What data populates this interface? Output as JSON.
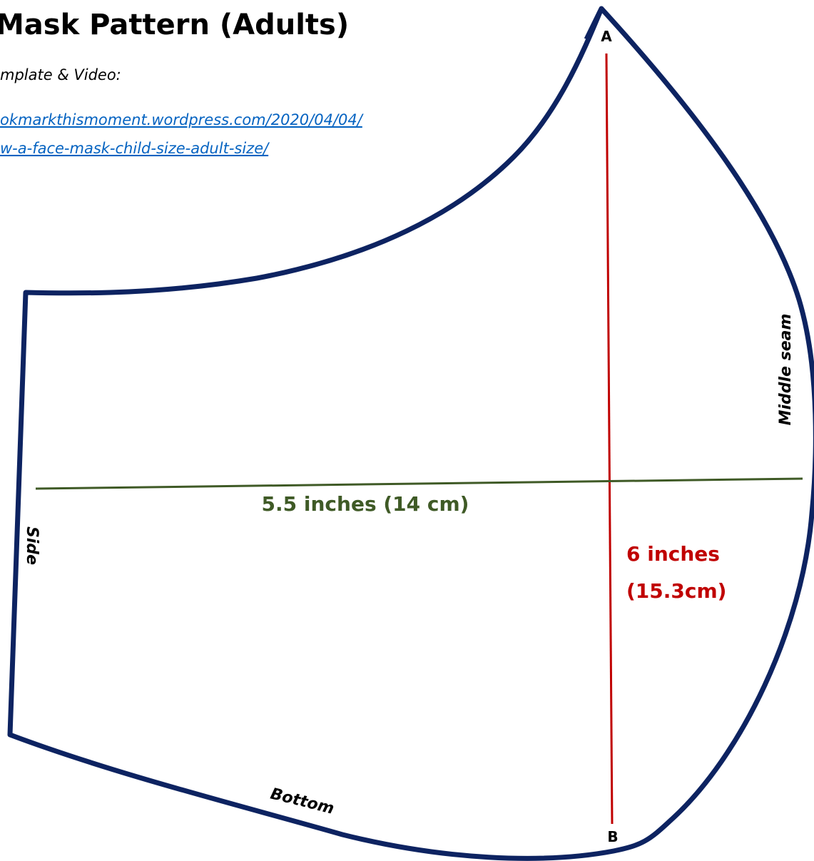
{
  "header": {
    "title": "Mask Pattern (Adults)",
    "subtitle": "mplate & Video:",
    "link_lines": [
      "okmarkthismoment.wordpress.com/2020/04/04/",
      "w-a-face-mask-child-size-adult-size/"
    ]
  },
  "points": {
    "top": "A",
    "bottom": "B"
  },
  "edges": {
    "middle": "Middle seam",
    "side": "Side",
    "bottom": "Bottom"
  },
  "measurements": {
    "width": "5.5 inches (14 cm)",
    "height_lines": [
      "6 inches",
      "(15.3cm)"
    ]
  }
}
